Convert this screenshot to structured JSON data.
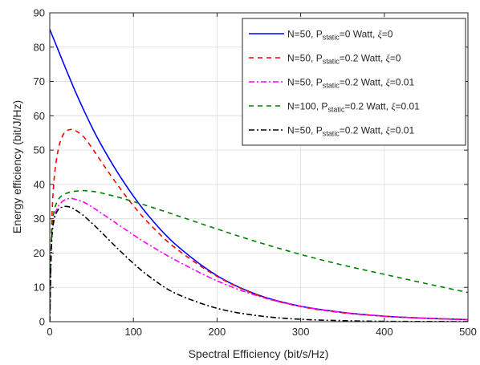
{
  "chart_data": {
    "type": "line",
    "xlabel": "Spectral Efficiency (bit/s/Hz)",
    "ylabel": "Energy efficiency (bit/J/Hz)",
    "xlim": [
      0,
      500
    ],
    "ylim": [
      0,
      90
    ],
    "xticks": [
      0,
      100,
      200,
      300,
      400,
      500
    ],
    "yticks": [
      0,
      10,
      20,
      30,
      40,
      50,
      60,
      70,
      80,
      90
    ],
    "grid": true,
    "legend_position": "top-right",
    "x": [
      0,
      2,
      5,
      10,
      15,
      20,
      25,
      30,
      40,
      50,
      60,
      80,
      100,
      120,
      150,
      200,
      250,
      300,
      350,
      400,
      450,
      500
    ],
    "series": [
      {
        "legend": {
          "pre": "N=50, P",
          "sub": "static",
          "post": "=0 Watt, ",
          "xi": "ξ",
          "xipost": "=0"
        },
        "color": "#0000ff",
        "dash": "solid",
        "values": [
          85.2,
          84.0,
          82.2,
          79.2,
          76.2,
          73.2,
          70.3,
          67.4,
          62.0,
          56.9,
          52.2,
          43.9,
          36.6,
          30.3,
          22.6,
          13.4,
          7.7,
          4.5,
          2.7,
          1.6,
          1.0,
          0.6
        ]
      },
      {
        "legend": {
          "pre": "N=50, P",
          "sub": "static",
          "post": "=0.2 Watt, ",
          "xi": "ξ",
          "xipost": "=0"
        },
        "color": "#ff0000",
        "dash": "6,5",
        "values": [
          0,
          26,
          41,
          50,
          54,
          55.6,
          56.0,
          55.8,
          54.0,
          50.8,
          47.2,
          40.2,
          33.8,
          28.3,
          21.5,
          13.2,
          7.6,
          4.4,
          2.6,
          1.6,
          1.0,
          0.6
        ]
      },
      {
        "legend": {
          "pre": "N=50, P",
          "sub": "static",
          "post": "=0.2 Watt, ",
          "xi": "ξ",
          "xipost": "=0.01"
        },
        "color": "#ff00ff",
        "dash": "7,3,2,3",
        "values": [
          0,
          22,
          30,
          33.5,
          35.0,
          35.7,
          35.9,
          35.7,
          34.9,
          33.5,
          31.9,
          28.6,
          25.3,
          22.2,
          18.0,
          11.9,
          7.4,
          4.5,
          2.7,
          1.6,
          1.0,
          0.6
        ]
      },
      {
        "legend": {
          "pre": "N=100, P",
          "sub": "static",
          "post": "=0.2 Watt, ",
          "xi": "ξ",
          "xipost": "=0.01"
        },
        "color": "#008000",
        "dash": "6,5",
        "values": [
          0,
          24,
          32,
          35.5,
          36.8,
          37.4,
          37.8,
          38.0,
          38.2,
          38.0,
          37.6,
          36.4,
          35.0,
          33.5,
          31.1,
          27.0,
          23.1,
          19.6,
          16.5,
          13.8,
          11.1,
          8.5
        ]
      },
      {
        "legend": {
          "pre": "N=50, P",
          "sub": "static",
          "post": "=0.2 Watt, ",
          "xi": "ξ",
          "xipost": "=0.01"
        },
        "color": "#000000",
        "dash": "7,3,2,3",
        "values": [
          0,
          22,
          29.5,
          32.6,
          33.4,
          33.6,
          33.3,
          32.7,
          31.0,
          28.8,
          26.5,
          21.6,
          17.0,
          13.0,
          8.3,
          3.9,
          1.7,
          0.7,
          0.3,
          0.1,
          0.05,
          0.02
        ]
      }
    ]
  }
}
